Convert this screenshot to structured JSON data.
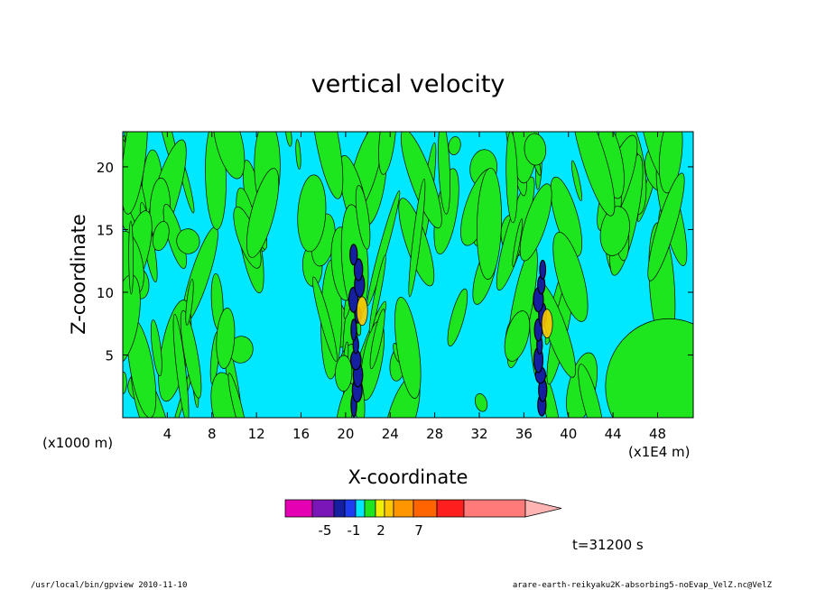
{
  "chart_data": {
    "type": "heatmap",
    "title": "vertical velocity",
    "xlabel": "X-coordinate",
    "ylabel": "Z-coordinate",
    "x_unit": "(x1E4 m)",
    "y_unit": "(x1000 m)",
    "xlim": [
      0,
      51.2
    ],
    "ylim": [
      0,
      22.8
    ],
    "x_ticks": [
      4,
      8,
      12,
      16,
      20,
      24,
      28,
      32,
      36,
      40,
      44,
      48
    ],
    "y_ticks": [
      5,
      10,
      15,
      20
    ],
    "colorbar": {
      "colors": [
        "#e600b4",
        "#7a16b8",
        "#1420a0",
        "#1e3cf0",
        "#00e8ff",
        "#1ee61e",
        "#f0f000",
        "#ffc800",
        "#ff9600",
        "#ff6400",
        "#ff1e1e",
        "#ff7a78",
        "#ffb4b4"
      ],
      "tick_labels": [
        {
          "label": "-5",
          "value": -5
        },
        {
          "label": "-1",
          "value": -1
        },
        {
          "label": "2",
          "value": 2
        },
        {
          "label": "7",
          "value": 7
        }
      ]
    },
    "annotation": "t=31200 s",
    "features": [
      {
        "x": 21.0,
        "z_from": 1.0,
        "z_to": 14.0,
        "note": "strong updraft/downdraft core"
      },
      {
        "x": 37.6,
        "z_from": 1.0,
        "z_to": 12.0,
        "note": "strong updraft/downdraft core"
      }
    ]
  },
  "footer": {
    "left": "/usr/local/bin/gpview  2010-11-10",
    "right": "arare-earth-reikyaku2K-absorbing5-noEvap_VelZ.nc@VelZ"
  }
}
